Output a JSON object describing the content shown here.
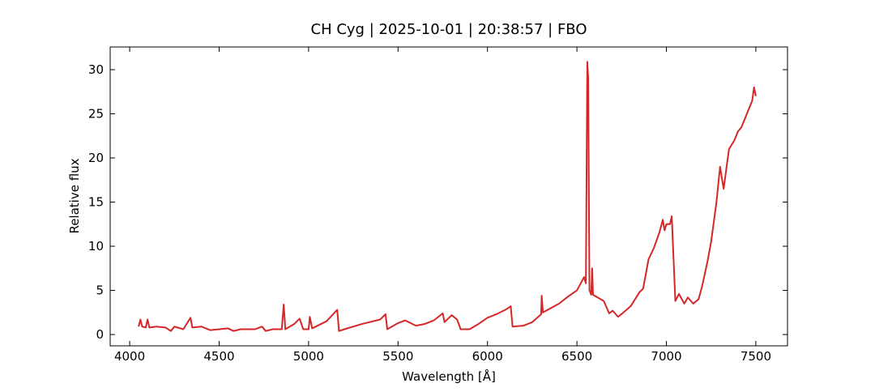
{
  "chart_data": {
    "type": "line",
    "title": "CH Cyg | 2025-10-01 | 20:38:57 | FBO",
    "x_label": "Wavelength [Å]",
    "y_label": "Relative flux",
    "xlim": [
      3891,
      7677
    ],
    "ylim": [
      -1.28,
      32.57
    ],
    "xticks": [
      4000,
      4500,
      5000,
      5500,
      6000,
      6500,
      7000,
      7500
    ],
    "yticks": [
      0,
      5,
      10,
      15,
      20,
      25,
      30
    ],
    "x": [
      4050,
      4060,
      4070,
      4090,
      4100,
      4110,
      4150,
      4200,
      4230,
      4250,
      4300,
      4340,
      4350,
      4400,
      4450,
      4500,
      4550,
      4580,
      4620,
      4700,
      4740,
      4760,
      4800,
      4850,
      4861,
      4870,
      4920,
      4950,
      4970,
      5000,
      5007,
      5020,
      5100,
      5160,
      5170,
      5200,
      5300,
      5400,
      5430,
      5440,
      5500,
      5540,
      5600,
      5650,
      5700,
      5750,
      5760,
      5800,
      5830,
      5850,
      5900,
      5950,
      6000,
      6050,
      6100,
      6130,
      6140,
      6200,
      6250,
      6300,
      6303,
      6310,
      6400,
      6450,
      6500,
      6540,
      6550,
      6558,
      6563,
      6570,
      6580,
      6585,
      6590,
      6650,
      6680,
      6700,
      6730,
      6760,
      6800,
      6850,
      6870,
      6900,
      6930,
      6960,
      6980,
      6990,
      7000,
      7020,
      7030,
      7050,
      7070,
      7100,
      7120,
      7150,
      7180,
      7200,
      7230,
      7250,
      7280,
      7300,
      7320,
      7350,
      7380,
      7400,
      7420,
      7450,
      7480,
      7490,
      7500
    ],
    "series": [
      {
        "name": "CH Cyg",
        "color": "#d62728",
        "values": [
          0.9,
          1.7,
          0.9,
          0.8,
          1.7,
          0.8,
          0.9,
          0.8,
          0.4,
          0.9,
          0.6,
          1.9,
          0.8,
          0.9,
          0.5,
          0.6,
          0.7,
          0.4,
          0.6,
          0.6,
          0.9,
          0.4,
          0.6,
          0.6,
          3.4,
          0.6,
          1.2,
          1.8,
          0.6,
          0.6,
          2.0,
          0.7,
          1.5,
          2.8,
          0.4,
          0.6,
          1.2,
          1.7,
          2.3,
          0.6,
          1.3,
          1.6,
          1.0,
          1.2,
          1.6,
          2.4,
          1.4,
          2.2,
          1.7,
          0.6,
          0.6,
          1.2,
          1.9,
          2.3,
          2.8,
          3.2,
          0.9,
          1.0,
          1.4,
          2.3,
          4.4,
          2.5,
          3.5,
          4.3,
          5.0,
          6.5,
          5.8,
          30.9,
          29,
          5.0,
          4.5,
          7.5,
          4.5,
          3.8,
          2.4,
          2.7,
          2.0,
          2.5,
          3.2,
          4.8,
          5.2,
          8.5,
          9.8,
          11.5,
          13.0,
          11.8,
          12.5,
          12.5,
          13.4,
          3.8,
          4.6,
          3.5,
          4.2,
          3.5,
          4.0,
          5.5,
          8.3,
          10.5,
          15.0,
          19.0,
          16.5,
          21,
          22,
          23,
          23.5,
          25,
          26.5,
          28,
          27
        ]
      }
    ]
  }
}
